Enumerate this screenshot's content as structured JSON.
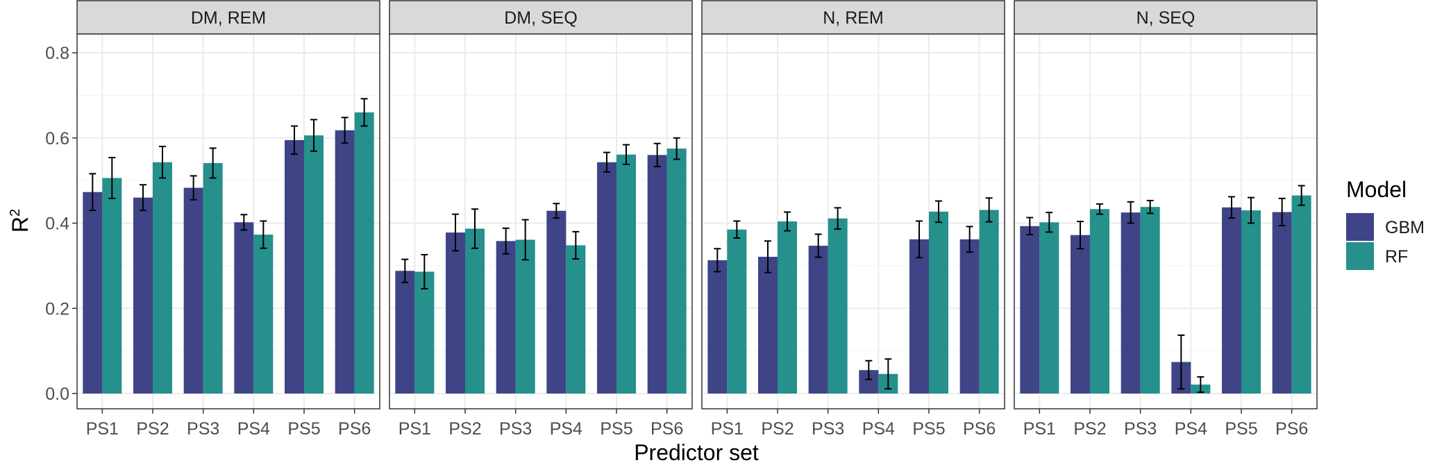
{
  "chart_data": {
    "type": "bar",
    "xlabel": "Predictor set",
    "ylabel": "R",
    "ylabel_sup": "2",
    "ylim": [
      0,
      0.8
    ],
    "yticks": [
      "0.0",
      "0.2",
      "0.4",
      "0.6",
      "0.8"
    ],
    "categories": [
      "PS1",
      "PS2",
      "PS3",
      "PS4",
      "PS5",
      "PS6"
    ],
    "legend": {
      "title": "Model",
      "placement": "right",
      "entries": [
        {
          "name": "GBM",
          "color": "#3f4487"
        },
        {
          "name": "RF",
          "color": "#25908c"
        }
      ]
    },
    "grid": true,
    "panels": [
      {
        "title": "DM, REM",
        "series": [
          {
            "name": "GBM",
            "values": [
              0.473,
              0.46,
              0.483,
              0.402,
              0.595,
              0.618
            ],
            "errors": [
              0.043,
              0.03,
              0.028,
              0.018,
              0.033,
              0.03
            ]
          },
          {
            "name": "RF",
            "values": [
              0.506,
              0.543,
              0.541,
              0.373,
              0.606,
              0.66
            ],
            "errors": [
              0.048,
              0.037,
              0.035,
              0.032,
              0.037,
              0.032
            ]
          }
        ]
      },
      {
        "title": "DM, SEQ",
        "series": [
          {
            "name": "GBM",
            "values": [
              0.288,
              0.378,
              0.358,
              0.429,
              0.543,
              0.56
            ],
            "errors": [
              0.027,
              0.043,
              0.03,
              0.017,
              0.023,
              0.027
            ]
          },
          {
            "name": "RF",
            "values": [
              0.286,
              0.387,
              0.361,
              0.348,
              0.561,
              0.575
            ],
            "errors": [
              0.04,
              0.046,
              0.047,
              0.032,
              0.023,
              0.025
            ]
          }
        ]
      },
      {
        "title": "N, REM",
        "series": [
          {
            "name": "GBM",
            "values": [
              0.313,
              0.321,
              0.347,
              0.055,
              0.362,
              0.362
            ],
            "errors": [
              0.027,
              0.037,
              0.027,
              0.022,
              0.043,
              0.03
            ]
          },
          {
            "name": "RF",
            "values": [
              0.385,
              0.404,
              0.411,
              0.046,
              0.427,
              0.431
            ],
            "errors": [
              0.02,
              0.022,
              0.025,
              0.035,
              0.025,
              0.028
            ]
          }
        ]
      },
      {
        "title": "N, SEQ",
        "series": [
          {
            "name": "GBM",
            "values": [
              0.393,
              0.372,
              0.425,
              0.074,
              0.437,
              0.426
            ],
            "errors": [
              0.02,
              0.032,
              0.025,
              0.063,
              0.025,
              0.032
            ]
          },
          {
            "name": "RF",
            "values": [
              0.402,
              0.433,
              0.438,
              0.021,
              0.43,
              0.465
            ],
            "errors": [
              0.023,
              0.012,
              0.015,
              0.018,
              0.03,
              0.023
            ]
          }
        ]
      }
    ]
  }
}
